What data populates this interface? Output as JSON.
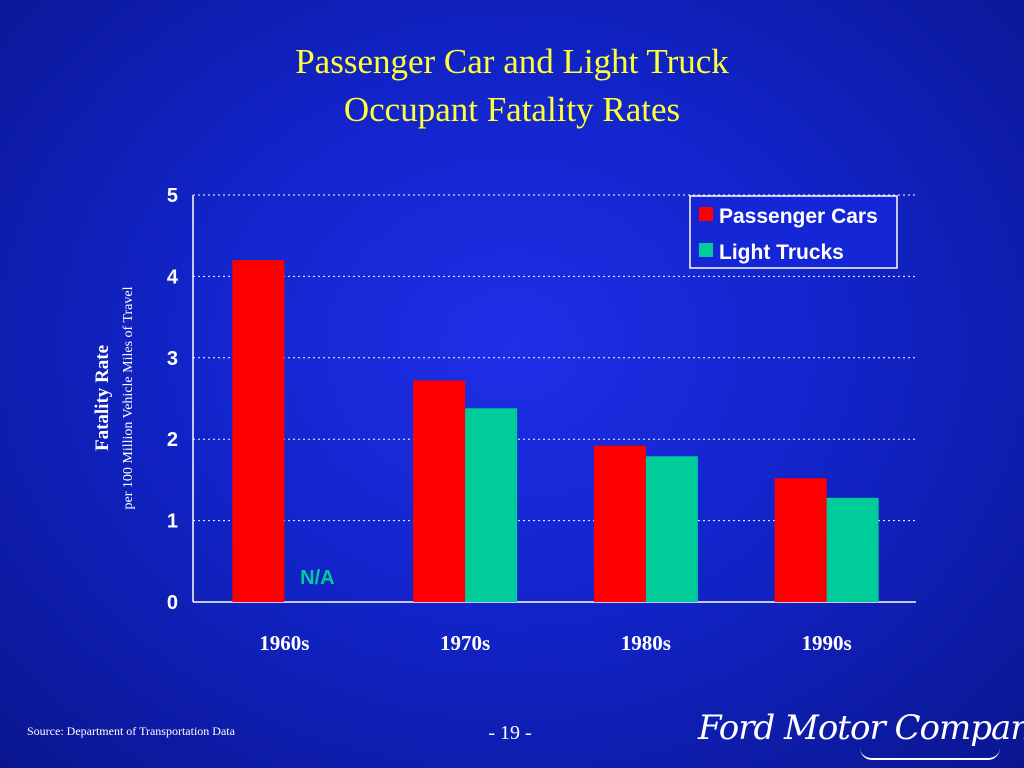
{
  "title_line1": "Passenger Car and Light Truck",
  "title_line2": "Occupant Fatality Rates",
  "source": "Source: Department of Transportation Data",
  "page_number": "- 19 -",
  "logo_text": "Ford Motor Company",
  "colors": {
    "passenger_cars": "#ff0000",
    "light_trucks": "#00cc99",
    "na_label": "#00cc99",
    "title": "#ffff3a"
  },
  "chart_data": {
    "type": "bar",
    "categories": [
      "1960s",
      "1970s",
      "1980s",
      "1990s"
    ],
    "series": [
      {
        "name": "Passenger Cars",
        "values": [
          4.2,
          2.72,
          1.92,
          1.52
        ]
      },
      {
        "name": "Light Trucks",
        "values": [
          null,
          2.38,
          1.79,
          1.28
        ]
      }
    ],
    "ylim": [
      0,
      5
    ],
    "yticks": [
      0,
      1,
      2,
      3,
      4,
      5
    ],
    "ylabel": "Fatality Rate",
    "ylabel_sub": "per 100 Million Vehicle Miles of Travel",
    "xlabel": "",
    "na_label": "N/A",
    "grid": true,
    "legend_position": "top-right"
  }
}
